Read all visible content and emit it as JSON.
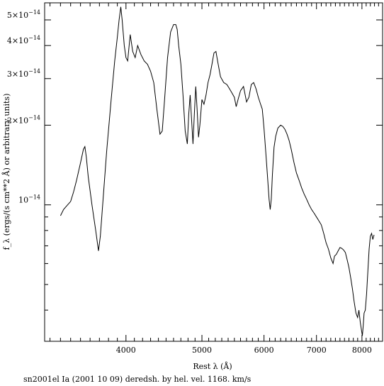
{
  "caption": "sn2001el Ia (2001 10 09) deredsh. by hel. vel.  1168. km/s",
  "chart_data": {
    "type": "line",
    "title": "",
    "xlabel": "Rest λ (Å)",
    "ylabel": "f_λ (ergs/(s cm**2 Å) or arbitrary units)",
    "y_scale": "log",
    "xlim": [
      3150,
      8500
    ],
    "ylim": [
      3.05e-15,
      5.8e-14
    ],
    "grid": false,
    "x_ticks": [
      {
        "value": 4000,
        "label": "4000"
      },
      {
        "value": 5000,
        "label": "5000"
      },
      {
        "value": 6000,
        "label": "6000"
      },
      {
        "value": 7000,
        "label": "7000"
      },
      {
        "value": 8000,
        "label": "8000"
      }
    ],
    "y_ticks": [
      {
        "value": 1e-14,
        "mant": "10",
        "exp": "−14"
      },
      {
        "value": 2e-14,
        "mant": "2×10",
        "exp": "−14"
      },
      {
        "value": 3e-14,
        "mant": "3×10",
        "exp": "−14"
      },
      {
        "value": 4e-14,
        "mant": "4×10",
        "exp": "−14"
      },
      {
        "value": 5e-14,
        "mant": "5×10",
        "exp": "−14"
      }
    ],
    "series": [
      {
        "x": [
          3300,
          3330,
          3360,
          3400,
          3430,
          3460,
          3500,
          3530,
          3545,
          3560,
          3580,
          3620,
          3660,
          3690,
          3710,
          3740,
          3780,
          3830,
          3870,
          3900,
          3920,
          3940,
          3955,
          3980,
          4000,
          4020,
          4050,
          4080,
          4110,
          4140,
          4180,
          4220,
          4260,
          4300,
          4340,
          4380,
          4420,
          4450,
          4480,
          4520,
          4560,
          4600,
          4630,
          4650,
          4670,
          4700,
          4730,
          4760,
          4790,
          4810,
          4830,
          4850,
          4870,
          4890,
          4910,
          4930,
          4950,
          4970,
          5000,
          5030,
          5060,
          5090,
          5120,
          5150,
          5180,
          5210,
          5240,
          5280,
          5330,
          5380,
          5420,
          5460,
          5500,
          5530,
          5560,
          5600,
          5650,
          5700,
          5740,
          5780,
          5820,
          5860,
          5900,
          5940,
          5970,
          6000,
          6030,
          6060,
          6090,
          6110,
          6130,
          6150,
          6180,
          6210,
          6250,
          6300,
          6340,
          6380,
          6420,
          6460,
          6500,
          6550,
          6600,
          6650,
          6700,
          6750,
          6800,
          6850,
          6900,
          6950,
          7000,
          7050,
          7100,
          7150,
          7200,
          7250,
          7300,
          7350,
          7380,
          7420,
          7460,
          7500,
          7540,
          7580,
          7620,
          7660,
          7700,
          7740,
          7780,
          7820,
          7860,
          7900,
          7930,
          7960,
          7990,
          8010,
          8030,
          8050,
          8080,
          8110,
          8140,
          8170,
          8200,
          8230,
          8260,
          8290
        ],
        "y": [
          9.1e-15,
          9.6e-15,
          9.9e-15,
          1.03e-14,
          1.12e-14,
          1.24e-14,
          1.44e-14,
          1.62e-14,
          1.66e-14,
          1.52e-14,
          1.28e-14,
          1e-14,
          8e-15,
          6.7e-15,
          7.6e-15,
          1.05e-14,
          1.6e-14,
          2.5e-14,
          3.5e-14,
          4.3e-14,
          5e-14,
          5.6e-14,
          5e-14,
          4e-14,
          3.6e-14,
          3.5e-14,
          4.4e-14,
          3.8e-14,
          3.6e-14,
          4e-14,
          3.7e-14,
          3.5e-14,
          3.4e-14,
          3.2e-14,
          2.9e-14,
          2.3e-14,
          1.85e-14,
          1.9e-14,
          2.5e-14,
          3.6e-14,
          4.5e-14,
          4.8e-14,
          4.8e-14,
          4.6e-14,
          4e-14,
          3.4e-14,
          2.6e-14,
          1.9e-14,
          1.7e-14,
          2.2e-14,
          2.6e-14,
          2.1e-14,
          1.7e-14,
          2.2e-14,
          2.8e-14,
          2.3e-14,
          1.8e-14,
          2e-14,
          2.5e-14,
          2.4e-14,
          2.6e-14,
          2.9e-14,
          3.1e-14,
          3.4e-14,
          3.75e-14,
          3.8e-14,
          3.45e-14,
          3.05e-14,
          2.9e-14,
          2.85e-14,
          2.75e-14,
          2.65e-14,
          2.55e-14,
          2.35e-14,
          2.5e-14,
          2.7e-14,
          2.8e-14,
          2.45e-14,
          2.55e-14,
          2.85e-14,
          2.9e-14,
          2.75e-14,
          2.55e-14,
          2.4e-14,
          2.3e-14,
          1.95e-14,
          1.6e-14,
          1.3e-14,
          1.05e-14,
          9.6e-15,
          1.05e-14,
          1.3e-14,
          1.65e-14,
          1.82e-14,
          1.95e-14,
          2e-14,
          1.98e-14,
          1.93e-14,
          1.85e-14,
          1.75e-14,
          1.62e-14,
          1.45e-14,
          1.32e-14,
          1.24e-14,
          1.16e-14,
          1.1e-14,
          1.05e-14,
          1e-14,
          9.6e-15,
          9.3e-15,
          9e-15,
          8.7e-15,
          8.4e-15,
          7.8e-15,
          7.2e-15,
          6.8e-15,
          6.3e-15,
          6e-15,
          6.4e-15,
          6.5e-15,
          6.7e-15,
          6.9e-15,
          6.85e-15,
          6.75e-15,
          6.6e-15,
          6.2e-15,
          5.8e-15,
          5.3e-15,
          4.8e-15,
          4.3e-15,
          3.9e-15,
          3.75e-15,
          4e-15,
          3.6e-15,
          3.35e-15,
          3.2e-15,
          3.5e-15,
          3.9e-15,
          4e-15,
          4.6e-15,
          5.6e-15,
          6.8e-15,
          7.6e-15,
          7.8e-15,
          7.4e-15,
          7.7e-15
        ]
      }
    ]
  }
}
